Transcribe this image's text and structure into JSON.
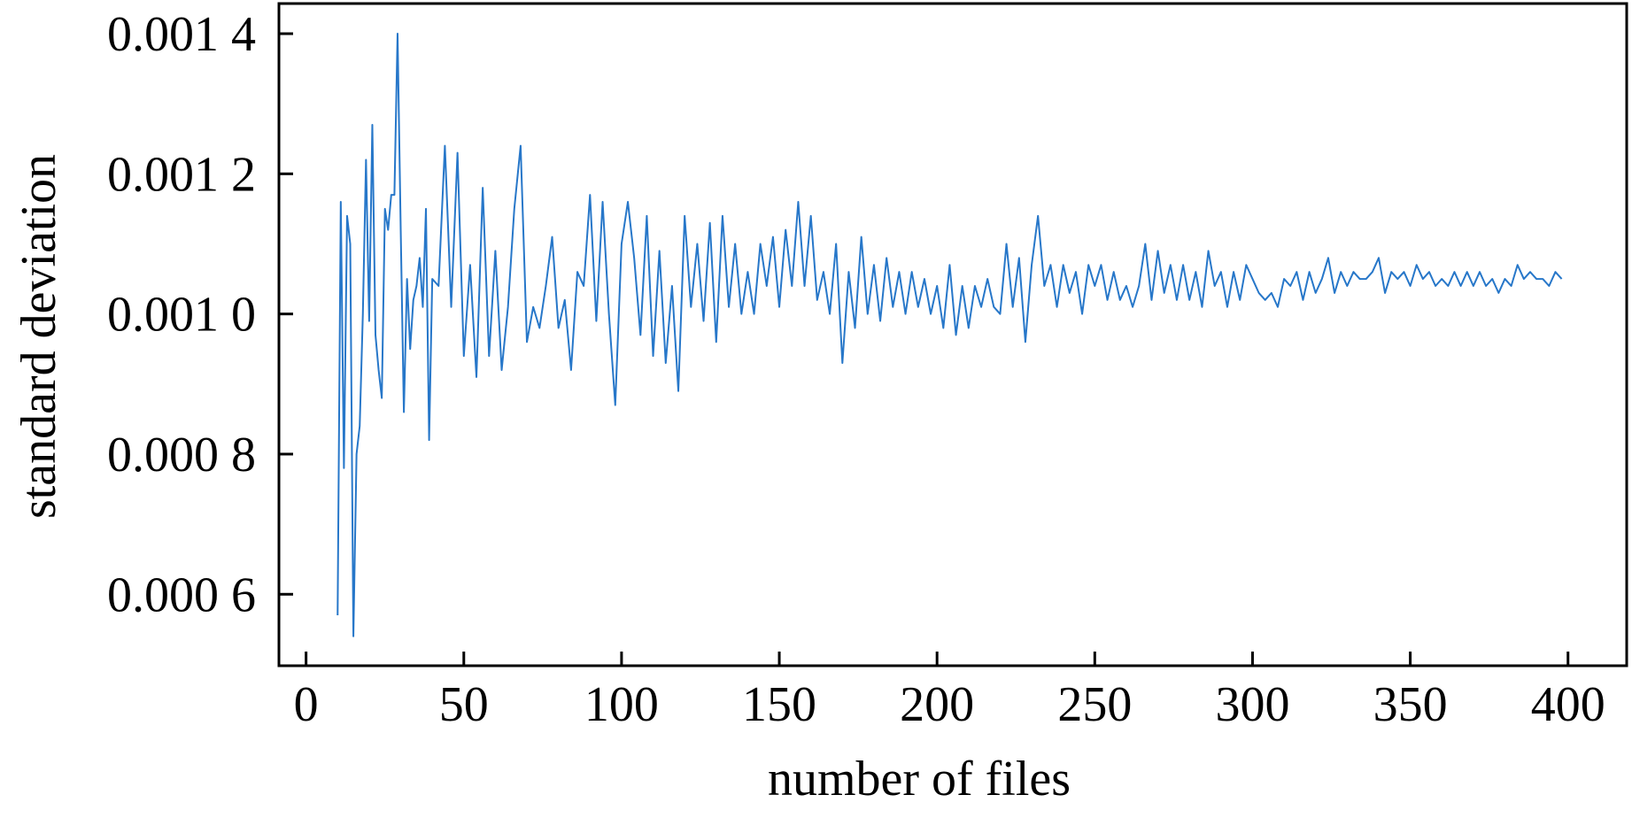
{
  "chart_data": {
    "type": "line",
    "xlabel": "number of files",
    "ylabel": "standard deviation",
    "x": [
      10,
      11,
      12,
      13,
      14,
      15,
      16,
      17,
      18,
      19,
      20,
      21,
      22,
      23,
      24,
      25,
      26,
      27,
      28,
      29,
      30,
      31,
      32,
      33,
      34,
      35,
      36,
      37,
      38,
      39,
      40,
      42,
      44,
      46,
      48,
      50,
      52,
      54,
      56,
      58,
      60,
      62,
      64,
      66,
      68,
      70,
      72,
      74,
      76,
      78,
      80,
      82,
      84,
      86,
      88,
      90,
      92,
      94,
      96,
      98,
      100,
      102,
      104,
      106,
      108,
      110,
      112,
      114,
      116,
      118,
      120,
      122,
      124,
      126,
      128,
      130,
      132,
      134,
      136,
      138,
      140,
      142,
      144,
      146,
      148,
      150,
      152,
      154,
      156,
      158,
      160,
      162,
      164,
      166,
      168,
      170,
      172,
      174,
      176,
      178,
      180,
      182,
      184,
      186,
      188,
      190,
      192,
      194,
      196,
      198,
      200,
      202,
      204,
      206,
      208,
      210,
      212,
      214,
      216,
      218,
      220,
      222,
      224,
      226,
      228,
      230,
      232,
      234,
      236,
      238,
      240,
      242,
      244,
      246,
      248,
      250,
      252,
      254,
      256,
      258,
      260,
      262,
      264,
      266,
      268,
      270,
      272,
      274,
      276,
      278,
      280,
      282,
      284,
      286,
      288,
      290,
      292,
      294,
      296,
      298,
      300,
      302,
      304,
      306,
      308,
      310,
      312,
      314,
      316,
      318,
      320,
      322,
      324,
      326,
      328,
      330,
      332,
      334,
      336,
      338,
      340,
      342,
      344,
      346,
      348,
      350,
      352,
      354,
      356,
      358,
      360,
      362,
      364,
      366,
      368,
      370,
      372,
      374,
      376,
      378,
      380,
      382,
      384,
      386,
      388,
      390,
      392,
      394,
      396,
      398
    ],
    "series": [
      {
        "color": "#2777c9",
        "values": [
          0.00057,
          0.00116,
          0.00078,
          0.00114,
          0.0011,
          0.00054,
          0.0008,
          0.00084,
          0.001,
          0.00122,
          0.00099,
          0.00127,
          0.00097,
          0.00092,
          0.00088,
          0.00115,
          0.00112,
          0.00117,
          0.00117,
          0.0014,
          0.00112,
          0.00086,
          0.00105,
          0.00095,
          0.00102,
          0.00104,
          0.00108,
          0.00101,
          0.00115,
          0.00082,
          0.00105,
          0.00104,
          0.00124,
          0.00101,
          0.00123,
          0.00094,
          0.00107,
          0.00091,
          0.00118,
          0.00094,
          0.00109,
          0.00092,
          0.00101,
          0.00115,
          0.00124,
          0.00096,
          0.00101,
          0.00098,
          0.00104,
          0.00111,
          0.00098,
          0.00102,
          0.00092,
          0.00106,
          0.00104,
          0.00117,
          0.00099,
          0.00116,
          0.001,
          0.00087,
          0.0011,
          0.00116,
          0.00108,
          0.00097,
          0.00114,
          0.00094,
          0.00109,
          0.00093,
          0.00104,
          0.00089,
          0.00114,
          0.00101,
          0.0011,
          0.00099,
          0.00113,
          0.00096,
          0.00114,
          0.00101,
          0.0011,
          0.001,
          0.00106,
          0.001,
          0.0011,
          0.00104,
          0.00111,
          0.00101,
          0.00112,
          0.00104,
          0.00116,
          0.00104,
          0.00114,
          0.00102,
          0.00106,
          0.001,
          0.0011,
          0.00093,
          0.00106,
          0.00098,
          0.00111,
          0.001,
          0.00107,
          0.00099,
          0.00108,
          0.00101,
          0.00106,
          0.001,
          0.00106,
          0.00101,
          0.00105,
          0.001,
          0.00104,
          0.00098,
          0.00107,
          0.00097,
          0.00104,
          0.00098,
          0.00104,
          0.00101,
          0.00105,
          0.00101,
          0.001,
          0.0011,
          0.00101,
          0.00108,
          0.00096,
          0.00107,
          0.00114,
          0.00104,
          0.00107,
          0.00101,
          0.00107,
          0.00103,
          0.00106,
          0.001,
          0.00107,
          0.00104,
          0.00107,
          0.00102,
          0.00106,
          0.00102,
          0.00104,
          0.00101,
          0.00104,
          0.0011,
          0.00102,
          0.00109,
          0.00103,
          0.00107,
          0.00102,
          0.00107,
          0.00102,
          0.00106,
          0.00101,
          0.00109,
          0.00104,
          0.00106,
          0.00101,
          0.00106,
          0.00102,
          0.00107,
          0.00105,
          0.00103,
          0.00102,
          0.00103,
          0.00101,
          0.00105,
          0.00104,
          0.00106,
          0.00102,
          0.00106,
          0.00103,
          0.00105,
          0.00108,
          0.00103,
          0.00106,
          0.00104,
          0.00106,
          0.00105,
          0.00105,
          0.00106,
          0.00108,
          0.00103,
          0.00106,
          0.00105,
          0.00106,
          0.00104,
          0.00107,
          0.00105,
          0.00106,
          0.00104,
          0.00105,
          0.00104,
          0.00106,
          0.00104,
          0.00106,
          0.00104,
          0.00106,
          0.00104,
          0.00105,
          0.00103,
          0.00105,
          0.00104,
          0.00107,
          0.00105,
          0.00106,
          0.00105,
          0.00105,
          0.00104,
          0.00106,
          0.00105
        ]
      }
    ],
    "xlim": [
      -8.6,
      418.6
    ],
    "ylim": [
      0.000498,
      0.001443
    ],
    "xticks": [
      0,
      50,
      100,
      150,
      200,
      250,
      300,
      350,
      400
    ],
    "yticks": [
      {
        "value": 0.0006,
        "label": "0.000 6"
      },
      {
        "value": 0.0008,
        "label": "0.000 8"
      },
      {
        "value": 0.001,
        "label": "0.001 0"
      },
      {
        "value": 0.0012,
        "label": "0.001 2"
      },
      {
        "value": 0.0014,
        "label": "0.001 4"
      }
    ]
  }
}
